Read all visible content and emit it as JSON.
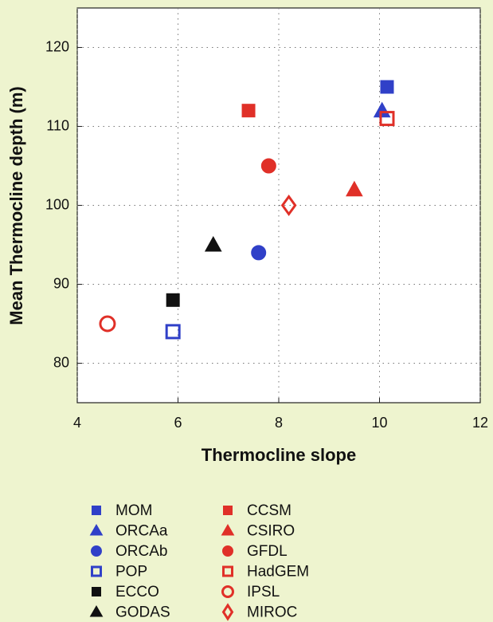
{
  "chart_data": {
    "type": "scatter",
    "xlabel": "Thermocline slope",
    "ylabel": "Mean Thermocline depth (m)",
    "xlim": [
      4,
      12
    ],
    "xticks": [
      4,
      6,
      8,
      10,
      12
    ],
    "ylim": [
      75,
      125
    ],
    "yticks": [
      80,
      90,
      100,
      110,
      120
    ],
    "grid": true,
    "legend": "bottom",
    "series": [
      {
        "name": "MOM",
        "color": "#3040c8",
        "marker": "square",
        "filled": true,
        "x": [
          10.15
        ],
        "values": [
          115
        ]
      },
      {
        "name": "ORCAa",
        "color": "#3040c8",
        "marker": "triangle",
        "filled": true,
        "x": [
          10.05
        ],
        "values": [
          112
        ]
      },
      {
        "name": "ORCAb",
        "color": "#3040c8",
        "marker": "circle",
        "filled": true,
        "x": [
          7.6
        ],
        "values": [
          94
        ]
      },
      {
        "name": "POP",
        "color": "#3040c8",
        "marker": "square",
        "filled": false,
        "x": [
          5.9
        ],
        "values": [
          84
        ]
      },
      {
        "name": "ECCO",
        "color": "#111111",
        "marker": "square",
        "filled": true,
        "x": [
          5.9
        ],
        "values": [
          88
        ]
      },
      {
        "name": "GODAS",
        "color": "#111111",
        "marker": "triangle",
        "filled": true,
        "x": [
          6.7
        ],
        "values": [
          95
        ]
      },
      {
        "name": "CCSM",
        "color": "#e03028",
        "marker": "square",
        "filled": true,
        "x": [
          7.4
        ],
        "values": [
          112
        ]
      },
      {
        "name": "CSIRO",
        "color": "#e03028",
        "marker": "triangle",
        "filled": true,
        "x": [
          9.5
        ],
        "values": [
          102
        ]
      },
      {
        "name": "GFDL",
        "color": "#e03028",
        "marker": "circle",
        "filled": true,
        "x": [
          7.8
        ],
        "values": [
          105
        ]
      },
      {
        "name": "HadGEM",
        "color": "#e03028",
        "marker": "square",
        "filled": false,
        "x": [
          10.15
        ],
        "values": [
          111
        ]
      },
      {
        "name": "IPSL",
        "color": "#e03028",
        "marker": "circle",
        "filled": false,
        "x": [
          4.6
        ],
        "values": [
          85
        ]
      },
      {
        "name": "MIROC",
        "color": "#e03028",
        "marker": "diamond",
        "filled": false,
        "x": [
          8.2
        ],
        "values": [
          100
        ]
      }
    ]
  }
}
